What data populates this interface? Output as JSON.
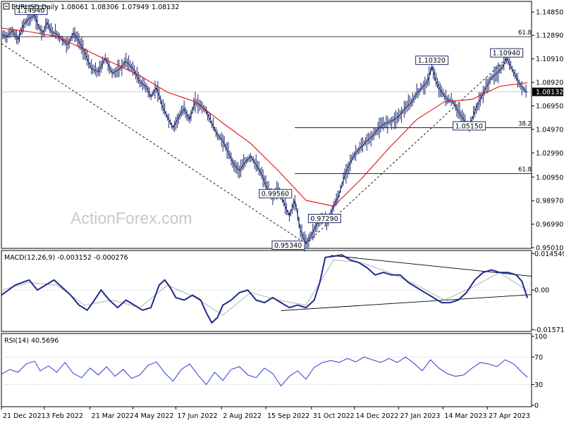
{
  "chart_data": [
    {
      "type": "candlestick",
      "title": "EURUSD,Daily",
      "ohlc": [
        "1.08061",
        "1.08306",
        "1.07949",
        "1.08132"
      ],
      "last_price": "1.08132",
      "y_ticks": [
        "1.14850",
        "1.12890",
        "1.10910",
        "1.08920",
        "1.06950",
        "1.04970",
        "1.02990",
        "1.00950",
        "0.98970",
        "0.96990",
        "0.95010"
      ],
      "ylim": [
        0.9501,
        1.1563
      ],
      "price_path": [
        [
          0,
          1.13
        ],
        [
          4,
          1.128
        ],
        [
          8,
          1.133
        ],
        [
          12,
          1.125
        ],
        [
          16,
          1.138
        ],
        [
          20,
          1.143
        ],
        [
          24,
          1.146
        ],
        [
          27,
          1.136
        ],
        [
          30,
          1.131
        ],
        [
          33,
          1.14
        ],
        [
          36,
          1.132
        ],
        [
          40,
          1.13
        ],
        [
          44,
          1.125
        ],
        [
          48,
          1.121
        ],
        [
          52,
          1.131
        ],
        [
          56,
          1.124
        ],
        [
          60,
          1.115
        ],
        [
          65,
          1.101
        ],
        [
          70,
          1.098
        ],
        [
          75,
          1.11
        ],
        [
          80,
          1.097
        ],
        [
          85,
          1.1
        ],
        [
          90,
          1.107
        ],
        [
          95,
          1.101
        ],
        [
          100,
          1.09
        ],
        [
          105,
          1.085
        ],
        [
          108,
          1.077
        ],
        [
          112,
          1.085
        ],
        [
          116,
          1.07
        ],
        [
          120,
          1.06
        ],
        [
          124,
          1.051
        ],
        [
          128,
          1.06
        ],
        [
          132,
          1.067
        ],
        [
          136,
          1.058
        ],
        [
          140,
          1.073
        ],
        [
          144,
          1.07
        ],
        [
          148,
          1.065
        ],
        [
          152,
          1.055
        ],
        [
          156,
          1.045
        ],
        [
          160,
          1.04
        ],
        [
          164,
          1.03
        ],
        [
          168,
          1.02
        ],
        [
          172,
          1.015
        ],
        [
          176,
          1.022
        ],
        [
          180,
          1.027
        ],
        [
          184,
          1.02
        ],
        [
          188,
          1.012
        ],
        [
          192,
          1.0
        ],
        [
          196,
          0.993
        ],
        [
          200,
          1.0
        ],
        [
          204,
          0.988
        ],
        [
          208,
          0.977
        ],
        [
          212,
          0.99
        ],
        [
          216,
          0.965
        ],
        [
          220,
          0.9534
        ],
        [
          224,
          0.961
        ],
        [
          228,
          0.97
        ],
        [
          232,
          0.975
        ],
        [
          236,
          0.9729
        ],
        [
          240,
          0.985
        ],
        [
          244,
          0.995
        ],
        [
          248,
          1.011
        ],
        [
          252,
          1.022
        ],
        [
          256,
          1.03
        ],
        [
          260,
          1.035
        ],
        [
          264,
          1.04
        ],
        [
          268,
          1.044
        ],
        [
          272,
          1.05
        ],
        [
          276,
          1.054
        ],
        [
          280,
          1.056
        ],
        [
          284,
          1.058
        ],
        [
          288,
          1.062
        ],
        [
          292,
          1.068
        ],
        [
          296,
          1.072
        ],
        [
          300,
          1.08
        ],
        [
          304,
          1.085
        ],
        [
          308,
          1.09
        ],
        [
          311,
          1.1032
        ],
        [
          314,
          1.09
        ],
        [
          318,
          1.081
        ],
        [
          322,
          1.075
        ],
        [
          326,
          1.073
        ],
        [
          330,
          1.065
        ],
        [
          334,
          1.058
        ],
        [
          338,
          1.0515
        ],
        [
          342,
          1.065
        ],
        [
          346,
          1.075
        ],
        [
          350,
          1.085
        ],
        [
          354,
          1.093
        ],
        [
          358,
          1.097
        ],
        [
          362,
          1.102
        ],
        [
          365,
          1.1094
        ],
        [
          368,
          1.103
        ],
        [
          371,
          1.096
        ],
        [
          374,
          1.089
        ],
        [
          377,
          1.084
        ],
        [
          380,
          1.081
        ]
      ],
      "ma_path": [
        [
          0,
          1.135
        ],
        [
          20,
          1.132
        ],
        [
          40,
          1.128
        ],
        [
          60,
          1.117
        ],
        [
          80,
          1.106
        ],
        [
          100,
          1.095
        ],
        [
          120,
          1.081
        ],
        [
          140,
          1.073
        ],
        [
          160,
          1.055
        ],
        [
          180,
          1.038
        ],
        [
          200,
          1.015
        ],
        [
          220,
          0.99
        ],
        [
          240,
          0.985
        ],
        [
          260,
          1.008
        ],
        [
          280,
          1.034
        ],
        [
          300,
          1.058
        ],
        [
          320,
          1.073
        ],
        [
          340,
          1.075
        ],
        [
          360,
          1.086
        ],
        [
          380,
          1.089
        ]
      ],
      "annotations": [
        {
          "text": "1.14940",
          "x": 24,
          "y": 1.1494
        },
        {
          "text": "1.10320",
          "x": 311,
          "y": 1.1032
        },
        {
          "text": "1.10940",
          "x": 365,
          "y": 1.1094
        },
        {
          "text": "1.05150",
          "x": 338,
          "y": 1.0515
        },
        {
          "text": "0.99560",
          "x": 198,
          "y": 0.9956
        },
        {
          "text": "0.97290",
          "x": 236,
          "y": 0.9729
        },
        {
          "text": "0.95340",
          "x": 220,
          "y": 0.9534
        }
      ],
      "fib_levels": [
        {
          "label": "61.8",
          "value": 1.1278,
          "x_from": 0
        },
        {
          "label": "38.2",
          "value": 1.0511,
          "x_from": 212
        },
        {
          "label": "61.8",
          "value": 1.0125,
          "x_from": 212
        }
      ],
      "trendlines": [
        {
          "from": [
            0,
            1.122
          ],
          "to": [
            220,
            0.9534
          ],
          "style": "dashed"
        },
        {
          "from": [
            220,
            0.9534
          ],
          "to": [
            365,
            1.1094
          ],
          "style": "dashed"
        }
      ]
    },
    {
      "type": "line",
      "title": "MACD(12,26,9) -0.003152 -0.000276",
      "y_ticks": [
        "0.014549",
        "0.00",
        "-0.015712"
      ],
      "ylim": [
        -0.0162,
        0.0152
      ],
      "macd_path": [
        [
          0,
          -0.002
        ],
        [
          10,
          0.002
        ],
        [
          20,
          0.004
        ],
        [
          26,
          0.0
        ],
        [
          32,
          0.002
        ],
        [
          38,
          0.004
        ],
        [
          44,
          0.001
        ],
        [
          50,
          -0.002
        ],
        [
          56,
          -0.006
        ],
        [
          62,
          -0.008
        ],
        [
          66,
          -0.005
        ],
        [
          72,
          0.0
        ],
        [
          78,
          -0.004
        ],
        [
          84,
          -0.007
        ],
        [
          90,
          -0.004
        ],
        [
          96,
          -0.006
        ],
        [
          102,
          -0.008
        ],
        [
          108,
          -0.007
        ],
        [
          114,
          0.002
        ],
        [
          118,
          0.004
        ],
        [
          122,
          0.001
        ],
        [
          126,
          -0.003
        ],
        [
          132,
          -0.004
        ],
        [
          138,
          -0.002
        ],
        [
          144,
          -0.004
        ],
        [
          148,
          -0.009
        ],
        [
          152,
          -0.013
        ],
        [
          156,
          -0.011
        ],
        [
          160,
          -0.006
        ],
        [
          166,
          -0.004
        ],
        [
          172,
          -0.001
        ],
        [
          178,
          0.0
        ],
        [
          184,
          -0.004
        ],
        [
          190,
          -0.005
        ],
        [
          196,
          -0.003
        ],
        [
          202,
          -0.005
        ],
        [
          208,
          -0.007
        ],
        [
          214,
          -0.006
        ],
        [
          220,
          -0.007
        ],
        [
          226,
          -0.004
        ],
        [
          230,
          0.003
        ],
        [
          234,
          0.013
        ],
        [
          240,
          0.0135
        ],
        [
          246,
          0.014
        ],
        [
          252,
          0.012
        ],
        [
          258,
          0.011
        ],
        [
          264,
          0.009
        ],
        [
          270,
          0.006
        ],
        [
          276,
          0.007
        ],
        [
          282,
          0.006
        ],
        [
          288,
          0.006
        ],
        [
          294,
          0.003
        ],
        [
          300,
          0.001
        ],
        [
          306,
          -0.001
        ],
        [
          312,
          -0.003
        ],
        [
          318,
          -0.005
        ],
        [
          324,
          -0.005
        ],
        [
          330,
          -0.004
        ],
        [
          336,
          -0.001
        ],
        [
          342,
          0.004
        ],
        [
          348,
          0.007
        ],
        [
          354,
          0.008
        ],
        [
          360,
          0.007
        ],
        [
          366,
          0.007
        ],
        [
          372,
          0.006
        ],
        [
          376,
          0.0035
        ],
        [
          380,
          -0.0032
        ]
      ],
      "signal_path": [
        [
          0,
          0.0
        ],
        [
          20,
          0.003
        ],
        [
          40,
          0.002
        ],
        [
          60,
          -0.006
        ],
        [
          80,
          -0.004
        ],
        [
          100,
          -0.007
        ],
        [
          120,
          0.002
        ],
        [
          140,
          -0.003
        ],
        [
          160,
          -0.01
        ],
        [
          180,
          -0.001
        ],
        [
          200,
          -0.004
        ],
        [
          220,
          -0.006
        ],
        [
          240,
          0.012
        ],
        [
          260,
          0.011
        ],
        [
          280,
          0.007
        ],
        [
          300,
          0.002
        ],
        [
          320,
          -0.004
        ],
        [
          340,
          0.001
        ],
        [
          360,
          0.007
        ],
        [
          380,
          -0.0003
        ]
      ],
      "trendlines": [
        {
          "from": [
            202,
            -0.0082
          ],
          "to": [
            383,
            -0.0018
          ]
        },
        {
          "from": [
            238,
            0.0138
          ],
          "to": [
            383,
            0.0055
          ]
        }
      ]
    },
    {
      "type": "line",
      "title": "RSI(14) 40.5696",
      "y_ticks": [
        "100",
        "70",
        "30",
        "0"
      ],
      "ylim": [
        0,
        100
      ],
      "levels": [
        70,
        30
      ],
      "rsi_path": [
        [
          0,
          45
        ],
        [
          6,
          52
        ],
        [
          12,
          48
        ],
        [
          18,
          60
        ],
        [
          24,
          64
        ],
        [
          28,
          50
        ],
        [
          34,
          57
        ],
        [
          40,
          48
        ],
        [
          46,
          62
        ],
        [
          52,
          46
        ],
        [
          58,
          40
        ],
        [
          64,
          54
        ],
        [
          70,
          44
        ],
        [
          76,
          56
        ],
        [
          82,
          42
        ],
        [
          88,
          52
        ],
        [
          94,
          39
        ],
        [
          100,
          44
        ],
        [
          106,
          58
        ],
        [
          112,
          63
        ],
        [
          118,
          47
        ],
        [
          124,
          35
        ],
        [
          130,
          52
        ],
        [
          136,
          60
        ],
        [
          142,
          44
        ],
        [
          148,
          30
        ],
        [
          154,
          48
        ],
        [
          160,
          36
        ],
        [
          166,
          52
        ],
        [
          172,
          56
        ],
        [
          178,
          44
        ],
        [
          184,
          40
        ],
        [
          190,
          54
        ],
        [
          196,
          46
        ],
        [
          202,
          28
        ],
        [
          208,
          42
        ],
        [
          214,
          50
        ],
        [
          220,
          38
        ],
        [
          226,
          55
        ],
        [
          232,
          62
        ],
        [
          238,
          65
        ],
        [
          244,
          62
        ],
        [
          250,
          68
        ],
        [
          256,
          63
        ],
        [
          262,
          70
        ],
        [
          268,
          66
        ],
        [
          274,
          62
        ],
        [
          280,
          68
        ],
        [
          286,
          62
        ],
        [
          292,
          70
        ],
        [
          298,
          61
        ],
        [
          304,
          50
        ],
        [
          310,
          66
        ],
        [
          316,
          54
        ],
        [
          322,
          46
        ],
        [
          328,
          42
        ],
        [
          334,
          44
        ],
        [
          340,
          54
        ],
        [
          346,
          62
        ],
        [
          352,
          60
        ],
        [
          358,
          56
        ],
        [
          364,
          66
        ],
        [
          370,
          60
        ],
        [
          376,
          48
        ],
        [
          380,
          40.57
        ]
      ]
    }
  ],
  "x_axis": {
    "labels": [
      "21 Dec 2021",
      "3 Feb 2022",
      "21 Mar 2022",
      "4 May 2022",
      "17 Jun 2022",
      "2 Aug 2022",
      "15 Sep 2022",
      "31 Oct 2022",
      "14 Dec 2022",
      "27 Jan 2023",
      "14 Mar 2023",
      "27 Apr 2023"
    ],
    "label_x": [
      0,
      31,
      64,
      95,
      126,
      159,
      191,
      224,
      255,
      287,
      319,
      351
    ],
    "x_range": [
      0,
      383
    ]
  },
  "watermark": "ActionForex.com",
  "colors": {
    "price": "#1e2a6e",
    "ma": "#e01010",
    "macd": "#1e2a8c",
    "signal": "#b0b0b0",
    "rsi": "#2b3bd6",
    "level": "#808080",
    "grid": "#c8c8c8"
  }
}
